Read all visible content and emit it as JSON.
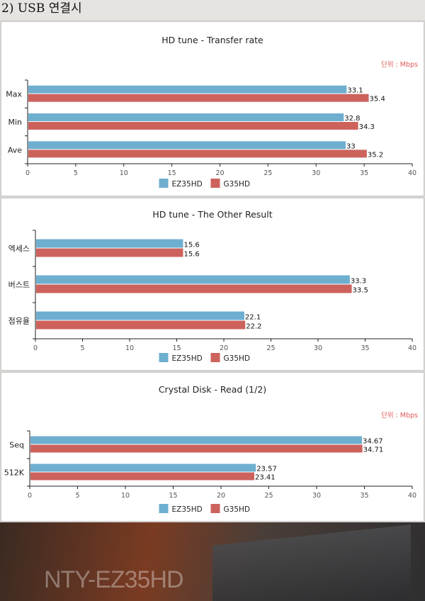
{
  "heading": "2) USB 연결시",
  "colors": {
    "ez": "#6eafd0",
    "g": "#cd625d",
    "unit": "#e05a56",
    "axis": "#222222",
    "tick": "#555555"
  },
  "backdrop": {
    "text": "NTY-EZ35HD"
  },
  "chart_data": [
    {
      "type": "bar",
      "orientation": "horizontal",
      "title": "HD tune - Transfer rate",
      "unit_label": "단위 : Mbps",
      "categories": [
        "Max",
        "Min",
        "Ave"
      ],
      "series": [
        {
          "name": "EZ35HD",
          "values": [
            33.1,
            32.8,
            33
          ]
        },
        {
          "name": "G35HD",
          "values": [
            35.4,
            34.3,
            35.2
          ]
        }
      ],
      "value_labels": [
        [
          "33.1",
          "32.8",
          "33"
        ],
        [
          "35.4",
          "34.3",
          "35.2"
        ]
      ],
      "xlim": [
        0,
        40
      ],
      "xticks": [
        0,
        5,
        10,
        15,
        20,
        25,
        30,
        35,
        40
      ],
      "legend": "bottom"
    },
    {
      "type": "bar",
      "orientation": "horizontal",
      "title": "HD tune - The Other Result",
      "unit_label": "",
      "categories": [
        "엑세스",
        "버스트",
        "점유율"
      ],
      "series": [
        {
          "name": "EZ35HD",
          "values": [
            15.6,
            33.3,
            22.1
          ]
        },
        {
          "name": "G35HD",
          "values": [
            15.6,
            33.5,
            22.2
          ]
        }
      ],
      "value_labels": [
        [
          "15.6",
          "33.3",
          "22.1"
        ],
        [
          "15.6",
          "33.5",
          "22.2"
        ]
      ],
      "xlim": [
        0,
        40
      ],
      "xticks": [
        0,
        5,
        10,
        15,
        20,
        25,
        30,
        35,
        40
      ],
      "legend": "bottom"
    },
    {
      "type": "bar",
      "orientation": "horizontal",
      "title": "Crystal Disk - Read (1/2)",
      "unit_label": "단위 : Mbps",
      "categories": [
        "Seq",
        "512K"
      ],
      "series": [
        {
          "name": "EZ35HD",
          "values": [
            34.67,
            23.57
          ]
        },
        {
          "name": "G35HD",
          "values": [
            34.71,
            23.41
          ]
        }
      ],
      "value_labels": [
        [
          "34.67",
          "23.57"
        ],
        [
          "34.71",
          "23.41"
        ]
      ],
      "xlim": [
        0,
        40
      ],
      "xticks": [
        0,
        5,
        10,
        15,
        20,
        25,
        30,
        35,
        40
      ],
      "legend": "bottom"
    }
  ]
}
